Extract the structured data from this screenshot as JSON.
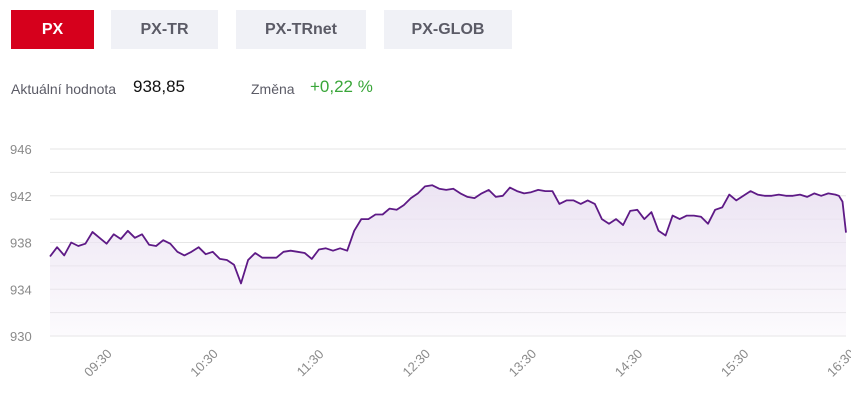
{
  "tabs": [
    {
      "label": "PX",
      "active": true
    },
    {
      "label": "PX-TR",
      "active": false
    },
    {
      "label": "PX-TRnet",
      "active": false
    },
    {
      "label": "PX-GLOB",
      "active": false
    }
  ],
  "quote": {
    "value_label": "Aktuální hodnota",
    "value": "938,85",
    "change_label": "Změna",
    "change": "+0,22 %"
  },
  "colors": {
    "accent": "#d6001c",
    "line": "#5e1a86",
    "fill": "#ece4f3",
    "positive": "#3aa63a",
    "grid": "#e6e6e6",
    "axis_text": "#8a8a8a"
  },
  "chart_data": {
    "type": "area",
    "ylim": [
      930,
      946
    ],
    "yticks": [
      930,
      934,
      938,
      942,
      946
    ],
    "xlim": [
      "09:00",
      "16:30"
    ],
    "xticks": [
      "09:30",
      "10:30",
      "11:30",
      "12:30",
      "13:30",
      "14:30",
      "15:30",
      "16:30"
    ],
    "series": [
      {
        "x": [
          "09:00",
          "09:04",
          "09:08",
          "09:12",
          "09:16",
          "09:20",
          "09:24",
          "09:28",
          "09:32",
          "09:36",
          "09:40",
          "09:44",
          "09:48",
          "09:52",
          "09:56",
          "10:00",
          "10:04",
          "10:08",
          "10:12",
          "10:16",
          "10:20",
          "10:24",
          "10:28",
          "10:32",
          "10:36",
          "10:40",
          "10:44",
          "10:48",
          "10:52",
          "10:56",
          "11:00",
          "11:04",
          "11:08",
          "11:12",
          "11:16",
          "11:20",
          "11:24",
          "11:28",
          "11:32",
          "11:36",
          "11:40",
          "11:44",
          "11:48",
          "11:52",
          "11:56",
          "12:00",
          "12:04",
          "12:08",
          "12:12",
          "12:16",
          "12:20",
          "12:24",
          "12:28",
          "12:32",
          "12:36",
          "12:40",
          "12:44",
          "12:48",
          "12:52",
          "12:56",
          "13:00",
          "13:04",
          "13:08",
          "13:12",
          "13:16",
          "13:20",
          "13:24",
          "13:28",
          "13:32",
          "13:36",
          "13:40",
          "13:44",
          "13:48",
          "13:52",
          "13:56",
          "14:00",
          "14:04",
          "14:08",
          "14:12",
          "14:16",
          "14:20",
          "14:24",
          "14:28",
          "14:32",
          "14:36",
          "14:40",
          "14:44",
          "14:48",
          "14:52",
          "14:56",
          "15:00",
          "15:04",
          "15:08",
          "15:12",
          "15:16",
          "15:20",
          "15:24",
          "15:28",
          "15:32",
          "15:36",
          "15:40",
          "15:44",
          "15:48",
          "15:52",
          "15:56",
          "16:00",
          "16:04",
          "16:08",
          "16:12",
          "16:16",
          "16:20",
          "16:24",
          "16:26",
          "16:28",
          "16:30"
        ],
        "values": [
          936.8,
          937.6,
          936.9,
          938.0,
          937.7,
          937.9,
          938.9,
          938.4,
          937.9,
          938.7,
          938.3,
          939.0,
          938.4,
          938.7,
          937.8,
          937.7,
          938.2,
          937.9,
          937.2,
          936.9,
          937.2,
          937.6,
          937.0,
          937.2,
          936.6,
          936.5,
          936.1,
          934.5,
          936.5,
          937.1,
          936.7,
          936.7,
          936.7,
          937.2,
          937.3,
          937.2,
          937.1,
          936.6,
          937.4,
          937.5,
          937.3,
          937.5,
          937.3,
          939.0,
          940.0,
          940.0,
          940.4,
          940.4,
          940.9,
          940.8,
          941.2,
          941.8,
          942.2,
          942.8,
          942.9,
          942.6,
          942.5,
          942.6,
          942.2,
          941.9,
          941.8,
          942.2,
          942.5,
          941.9,
          942.0,
          942.7,
          942.4,
          942.2,
          942.3,
          942.5,
          942.4,
          942.4,
          941.3,
          941.6,
          941.6,
          941.3,
          941.6,
          941.3,
          940.0,
          939.6,
          940.0,
          939.5,
          940.7,
          940.8,
          940.0,
          940.6,
          939.0,
          938.6,
          940.3,
          940.0,
          940.3,
          940.3,
          940.2,
          939.6,
          940.8,
          941.0,
          942.1,
          941.6,
          942.0,
          942.4,
          942.1,
          942.0,
          942.0,
          942.1,
          942.0,
          942.0,
          942.1,
          941.9,
          942.2,
          942.0,
          942.2,
          942.1,
          942.0,
          941.5,
          938.85
        ]
      }
    ]
  }
}
